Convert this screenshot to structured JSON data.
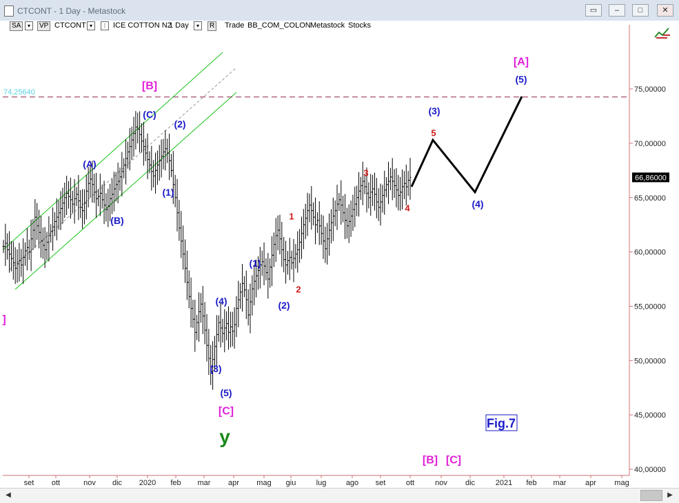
{
  "window": {
    "title": "CTCONT - 1 Day - Metastock",
    "buttons": [
      "restore-icon",
      "minimize-icon",
      "maximize-icon",
      "close-icon"
    ]
  },
  "toolbar": {
    "sa_label": "SA",
    "vp_label": "VP",
    "symbol": "CTCONT",
    "instrument": "ICE COTTON N2",
    "interval": "1 Day",
    "r_label": "R",
    "trade_label": "Trade",
    "source_label": "BB_COM_COLON",
    "provider_label": "Metastock",
    "stocks_label": "Stocks"
  },
  "chart_data": {
    "type": "ohlc",
    "y_ticks": [
      "75,00000",
      "70,00000",
      "65,00000",
      "60,00000",
      "55,00000",
      "50,00000",
      "45,00000",
      "40,00000"
    ],
    "ylim": [
      39.5,
      78.5
    ],
    "x_ticks": [
      "set",
      "ott",
      "nov",
      "dic",
      "2020",
      "feb",
      "mar",
      "apr",
      "mag",
      "giu",
      "lug",
      "ago",
      "set",
      "ott",
      "nov",
      "dic",
      "2021",
      "feb",
      "mar",
      "apr",
      "mag"
    ],
    "current_price": "66,86000",
    "target_line_value": 74.2564,
    "target_label": "74,25640",
    "closes": [
      60.5,
      60.8,
      60.2,
      59.8,
      59.4,
      59.0,
      58.5,
      58.9,
      59.2,
      58.8,
      59.5,
      60.1,
      60.4,
      60.0,
      61.2,
      62.0,
      63.2,
      62.4,
      61.8,
      61.0,
      60.6,
      60.2,
      60.9,
      61.5,
      61.9,
      62.3,
      62.8,
      63.2,
      63.6,
      64.0,
      64.5,
      65.0,
      65.4,
      65.1,
      64.8,
      64.4,
      64.9,
      65.3,
      64.7,
      64.1,
      63.8,
      64.5,
      65.6,
      66.3,
      66.7,
      66.2,
      65.5,
      64.9,
      65.1,
      65.4,
      64.8,
      64.3,
      63.9,
      64.2,
      64.9,
      65.3,
      65.8,
      66.2,
      66.5,
      66.9,
      67.4,
      68.0,
      68.6,
      69.2,
      69.7,
      70.3,
      70.9,
      71.5,
      71.3,
      70.8,
      70.2,
      69.7,
      69.1,
      68.5,
      68.0,
      67.4,
      67.0,
      67.5,
      68.0,
      68.4,
      68.8,
      69.2,
      69.5,
      69.1,
      68.4,
      67.5,
      66.2,
      65.0,
      63.6,
      62.2,
      61.0,
      59.8,
      58.5,
      57.2,
      55.9,
      54.8,
      53.8,
      52.6,
      53.5,
      54.5,
      55.2,
      54.1,
      52.8,
      51.4,
      50.2,
      49.0,
      50.1,
      51.3,
      52.4,
      53.5,
      53.0,
      52.5,
      53.0,
      53.4,
      52.6,
      53.1,
      52.7,
      53.3,
      54.8,
      55.6,
      56.3,
      57.1,
      56.5,
      55.6,
      54.2,
      55.4,
      56.6,
      57.3,
      57.8,
      58.3,
      58.8,
      59.1,
      58.7,
      58.1,
      57.5,
      58.6,
      59.7,
      60.7,
      61.5,
      62.0,
      61.2,
      60.2,
      59.3,
      58.8,
      59.2,
      59.5,
      59.0,
      59.4,
      59.8,
      60.2,
      60.9,
      61.7,
      62.5,
      63.1,
      63.8,
      64.3,
      63.8,
      63.2,
      62.5,
      62.9,
      62.4,
      61.7,
      61.0,
      60.3,
      61.2,
      62.0,
      62.7,
      63.3,
      63.8,
      64.4,
      64.8,
      64.3,
      63.6,
      62.9,
      62.4,
      62.8,
      63.3,
      63.9,
      64.4,
      65.0,
      65.6,
      66.1,
      66.5,
      66.0,
      65.4,
      65.0,
      65.5,
      65.8,
      65.3,
      64.6,
      64.1,
      64.6,
      65.2,
      65.7,
      66.2,
      66.5,
      66.9,
      66.5,
      66.1,
      65.7,
      65.2,
      65.5,
      66.0,
      66.3,
      66.0,
      66.6,
      66.86
    ],
    "projection": [
      [
        66.0,
        "2020-10-05"
      ],
      [
        70.3,
        "2020-10-26"
      ],
      [
        65.5,
        "2020-12-04"
      ],
      [
        74.3,
        "2021-01-27"
      ]
    ],
    "annotations": [
      {
        "text": "[B]",
        "color": "#e020d8"
      },
      {
        "text": "(C)",
        "color": "#1a1ac8"
      },
      {
        "text": "(2)",
        "color": "#1a1ac8"
      },
      {
        "text": "(A)",
        "color": "#1a1ac8"
      },
      {
        "text": "(B)",
        "color": "#1a1ac8"
      },
      {
        "text": "(1)",
        "color": "#1a1ac8"
      },
      {
        "text": "(4)",
        "color": "#1a1ac8"
      },
      {
        "text": "(3)",
        "color": "#1a1ac8"
      },
      {
        "text": "(5)",
        "color": "#1a1ac8"
      },
      {
        "text": "[C]",
        "color": "#e020d8"
      },
      {
        "text": "y",
        "color": "#1a8a1a"
      },
      {
        "text": "(1)",
        "color": "#1a1ac8"
      },
      {
        "text": "(2)",
        "color": "#1a1ac8"
      },
      {
        "text": "1",
        "color": "#d01818"
      },
      {
        "text": "2",
        "color": "#d01818"
      },
      {
        "text": "3",
        "color": "#d01818"
      },
      {
        "text": "4",
        "color": "#d01818"
      },
      {
        "text": "5",
        "color": "#d01818"
      },
      {
        "text": "(3)",
        "color": "#1a1ac8"
      },
      {
        "text": "(4)",
        "color": "#1a1ac8"
      },
      {
        "text": "(5)",
        "color": "#1a1ac8"
      },
      {
        "text": "[A]",
        "color": "#e020d8"
      },
      {
        "text": "[B]",
        "color": "#e020d8"
      },
      {
        "text": "[C]",
        "color": "#e020d8"
      },
      {
        "text": "]",
        "color": "#e020d8"
      },
      {
        "text": "Fig.7",
        "color": "#1a1ac8"
      }
    ],
    "colors": {
      "bars": "#000000",
      "channel": "#19c419",
      "channel_mid": "#999999",
      "target_line": "#8a2050",
      "target_label": "#5ad0e0",
      "axis": "#d07070",
      "projection": "#000000"
    }
  }
}
